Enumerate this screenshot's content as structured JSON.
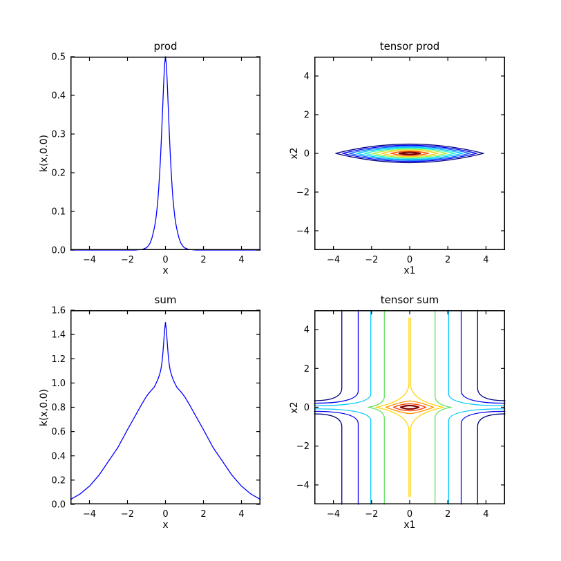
{
  "figure": {
    "background": "#ffffff",
    "spine_color": "#000000",
    "text_color": "#000000",
    "line_color": "#0000ff"
  },
  "subplots": [
    {
      "key": "prod",
      "title": "prod",
      "xlabel": "x",
      "ylabel": "k(x,0.0)",
      "xlim": [
        -5,
        5
      ],
      "ylim": [
        0,
        0.5
      ],
      "xticks": {
        "values": [
          -4,
          -2,
          0,
          2,
          4
        ],
        "labels": [
          "−4",
          "−2",
          "0",
          "2",
          "4"
        ]
      },
      "yticks": {
        "values": [
          0,
          0.1,
          0.2,
          0.3,
          0.4,
          0.5
        ],
        "labels": [
          "0.0",
          "0.1",
          "0.2",
          "0.3",
          "0.4",
          "0.5"
        ]
      }
    },
    {
      "key": "tensor_prod",
      "title": "tensor prod",
      "xlabel": "x1",
      "ylabel": "x2",
      "xlim": [
        -5,
        5
      ],
      "ylim": [
        -5,
        5
      ],
      "xticks": {
        "values": [
          -4,
          -2,
          0,
          2,
          4
        ],
        "labels": [
          "−4",
          "−2",
          "0",
          "2",
          "4"
        ]
      },
      "yticks": {
        "values": [
          -4,
          -2,
          0,
          2,
          4
        ],
        "labels": [
          "−4",
          "−2",
          "0",
          "2",
          "4"
        ]
      }
    },
    {
      "key": "sum",
      "title": "sum",
      "xlabel": "x",
      "ylabel": "k(x,0.0)",
      "xlim": [
        -5,
        5
      ],
      "ylim": [
        0,
        1.6
      ],
      "xticks": {
        "values": [
          -4,
          -2,
          0,
          2,
          4
        ],
        "labels": [
          "−4",
          "−2",
          "0",
          "2",
          "4"
        ]
      },
      "yticks": {
        "values": [
          0,
          0.2,
          0.4,
          0.6,
          0.8,
          1.0,
          1.2,
          1.4,
          1.6
        ],
        "labels": [
          "0.0",
          "0.2",
          "0.4",
          "0.6",
          "0.8",
          "1.0",
          "1.2",
          "1.4",
          "1.6"
        ]
      }
    },
    {
      "key": "tensor_sum",
      "title": "tensor sum",
      "xlabel": "x1",
      "ylabel": "x2",
      "xlim": [
        -5,
        5
      ],
      "ylim": [
        -5,
        5
      ],
      "xticks": {
        "values": [
          -4,
          -2,
          0,
          2,
          4
        ],
        "labels": [
          "−4",
          "−2",
          "0",
          "2",
          "4"
        ]
      },
      "yticks": {
        "values": [
          -4,
          -2,
          0,
          2,
          4
        ],
        "labels": [
          "−4",
          "−2",
          "0",
          "2",
          "4"
        ]
      }
    }
  ],
  "chart_data": [
    {
      "type": "line",
      "title": "prod",
      "xlabel": "x",
      "ylabel": "k(x,0.0)",
      "xlim": [
        -5,
        5
      ],
      "ylim": [
        0,
        0.5
      ],
      "color": "#0000ff",
      "description": "narrow kernel peak centered at x=0, max 0.5, ~0 for |x|>1.2",
      "points": [
        [
          -5,
          0
        ],
        [
          -1.6,
          0
        ],
        [
          -1.4,
          0.001
        ],
        [
          -1.2,
          0.002
        ],
        [
          -1.1,
          0.004
        ],
        [
          -1.0,
          0.006
        ],
        [
          -0.9,
          0.011
        ],
        [
          -0.8,
          0.019
        ],
        [
          -0.7,
          0.033
        ],
        [
          -0.6,
          0.054
        ],
        [
          -0.55,
          0.067
        ],
        [
          -0.5,
          0.083
        ],
        [
          -0.45,
          0.104
        ],
        [
          -0.4,
          0.13
        ],
        [
          -0.35,
          0.163
        ],
        [
          -0.3,
          0.203
        ],
        [
          -0.25,
          0.25
        ],
        [
          -0.2,
          0.305
        ],
        [
          -0.15,
          0.365
        ],
        [
          -0.1,
          0.425
        ],
        [
          -0.05,
          0.478
        ],
        [
          0,
          0.5
        ],
        [
          0.05,
          0.478
        ],
        [
          0.1,
          0.425
        ],
        [
          0.15,
          0.365
        ],
        [
          0.2,
          0.305
        ],
        [
          0.25,
          0.25
        ],
        [
          0.3,
          0.203
        ],
        [
          0.35,
          0.163
        ],
        [
          0.4,
          0.13
        ],
        [
          0.45,
          0.104
        ],
        [
          0.5,
          0.083
        ],
        [
          0.55,
          0.067
        ],
        [
          0.6,
          0.054
        ],
        [
          0.7,
          0.033
        ],
        [
          0.8,
          0.019
        ],
        [
          0.9,
          0.011
        ],
        [
          1.0,
          0.006
        ],
        [
          1.1,
          0.004
        ],
        [
          1.2,
          0.002
        ],
        [
          1.4,
          0.001
        ],
        [
          1.6,
          0
        ],
        [
          5,
          0
        ]
      ]
    },
    {
      "type": "contour",
      "title": "tensor prod",
      "xlabel": "x1",
      "ylabel": "x2",
      "xlim": [
        -5,
        5
      ],
      "ylim": [
        -5,
        5
      ],
      "description": "nested flat lens-shaped contours centered at (0,0); jet colormap outer(low)->inner(high)",
      "levels": [
        {
          "kind": "lens",
          "rx": 3.88,
          "ry": 0.48,
          "color": "#000080"
        },
        {
          "kind": "lens",
          "rx": 3.52,
          "ry": 0.42,
          "color": "#0000f1"
        },
        {
          "kind": "lens",
          "rx": 3.16,
          "ry": 0.365,
          "color": "#0064ff"
        },
        {
          "kind": "lens",
          "rx": 2.78,
          "ry": 0.315,
          "color": "#00c8ff"
        },
        {
          "kind": "lens",
          "rx": 2.38,
          "ry": 0.265,
          "color": "#2cf0c8"
        },
        {
          "kind": "lens",
          "rx": 1.95,
          "ry": 0.215,
          "color": "#aaf03c"
        },
        {
          "kind": "lens",
          "rx": 1.5,
          "ry": 0.165,
          "color": "#ffcc1e"
        },
        {
          "kind": "lens",
          "rx": 1.0,
          "ry": 0.11,
          "color": "#ff5200"
        },
        {
          "kind": "lens",
          "rx": 0.55,
          "ry": 0.055,
          "color": "#800000",
          "width": 2.2
        }
      ]
    },
    {
      "type": "line",
      "title": "sum",
      "xlabel": "x",
      "ylabel": "k(x,0.0)",
      "xlim": [
        -5,
        5
      ],
      "ylim": [
        0,
        1.6
      ],
      "color": "#0000ff",
      "description": "broad tent-shaped kernel with sharp spike at x=0 reaching 1.5; tails ~0.04 at |x|=5",
      "points": [
        [
          -5,
          0.04
        ],
        [
          -4.5,
          0.085
        ],
        [
          -4,
          0.15
        ],
        [
          -3.5,
          0.24
        ],
        [
          -3,
          0.355
        ],
        [
          -2.5,
          0.47
        ],
        [
          -2,
          0.615
        ],
        [
          -1.75,
          0.685
        ],
        [
          -1.5,
          0.755
        ],
        [
          -1.25,
          0.825
        ],
        [
          -1,
          0.89
        ],
        [
          -0.8,
          0.93
        ],
        [
          -0.6,
          0.965
        ],
        [
          -0.5,
          0.995
        ],
        [
          -0.4,
          1.03
        ],
        [
          -0.3,
          1.075
        ],
        [
          -0.25,
          1.105
        ],
        [
          -0.2,
          1.15
        ],
        [
          -0.15,
          1.22
        ],
        [
          -0.1,
          1.32
        ],
        [
          -0.05,
          1.43
        ],
        [
          0,
          1.5
        ],
        [
          0.05,
          1.43
        ],
        [
          0.1,
          1.32
        ],
        [
          0.15,
          1.22
        ],
        [
          0.2,
          1.15
        ],
        [
          0.25,
          1.105
        ],
        [
          0.3,
          1.075
        ],
        [
          0.4,
          1.03
        ],
        [
          0.5,
          0.995
        ],
        [
          0.6,
          0.965
        ],
        [
          0.8,
          0.93
        ],
        [
          1,
          0.89
        ],
        [
          1.25,
          0.825
        ],
        [
          1.5,
          0.755
        ],
        [
          1.75,
          0.685
        ],
        [
          2,
          0.615
        ],
        [
          2.5,
          0.47
        ],
        [
          3,
          0.355
        ],
        [
          3.5,
          0.24
        ],
        [
          4,
          0.15
        ],
        [
          4.5,
          0.085
        ],
        [
          5,
          0.04
        ]
      ]
    },
    {
      "type": "contour",
      "title": "tensor sum",
      "xlabel": "x1",
      "ylabel": "x2",
      "xlim": [
        -5,
        5
      ],
      "ylim": [
        -5,
        5
      ],
      "description": "cross-shaped additive-kernel contours: vertical lines bending to horizontal near x2=0 for low levels; closed diamonds/lenses at center for high levels",
      "levels": [
        {
          "kind": "edge",
          "x": 3.56,
          "bend": 1.0,
          "exit": 0.34,
          "color": "#000080"
        },
        {
          "kind": "edge",
          "x": 2.7,
          "bend": 0.85,
          "exit": 0.21,
          "color": "#0000f1"
        },
        {
          "kind": "edge",
          "x": 2.04,
          "bend": 0.7,
          "exit": 0.08,
          "color": "#00c8ff"
        },
        {
          "kind": "cusp",
          "x": 1.33,
          "bend": 0.52,
          "apex": 2.18,
          "color": "#63e063"
        },
        {
          "kind": "spike",
          "top": 4.6,
          "split": 1.15,
          "apex": 1.78,
          "color": "#ffd60a"
        },
        {
          "kind": "diamond",
          "rx": 1.25,
          "ry": 0.33,
          "color": "#ff9400"
        },
        {
          "kind": "lens",
          "rx": 0.85,
          "ry": 0.18,
          "color": "#ff3c00"
        },
        {
          "kind": "lens",
          "rx": 0.48,
          "ry": 0.09,
          "color": "#800000",
          "width": 2.2
        }
      ]
    }
  ]
}
